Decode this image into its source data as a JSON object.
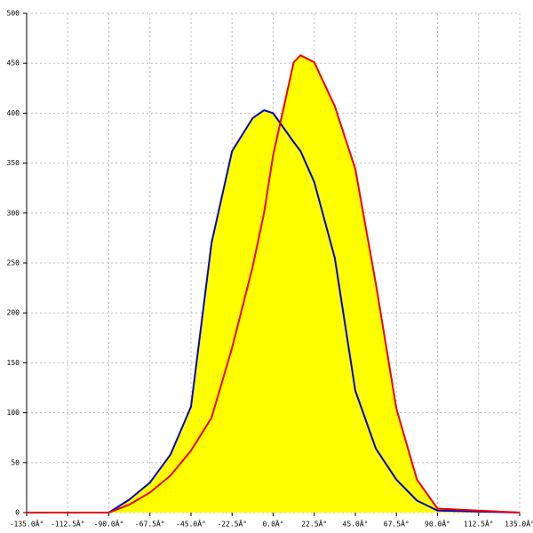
{
  "chart_data": {
    "type": "area",
    "x": [
      -135,
      -90,
      -78.75,
      -67.5,
      -56.25,
      -45,
      -33.75,
      -22.5,
      -11.25,
      -5,
      0,
      11.25,
      15,
      22.5,
      33.75,
      45,
      56.25,
      67.5,
      78.75,
      90,
      135
    ],
    "series": [
      {
        "color": "#0000cc",
        "values": [
          0,
          0,
          13,
          30,
          58,
          106,
          270,
          362,
          395,
          403,
          400,
          371,
          362,
          331,
          255,
          122,
          64,
          33,
          12,
          2,
          0
        ]
      },
      {
        "color": "#ee0000",
        "values": [
          0,
          0,
          8,
          20,
          37,
          62,
          95,
          165,
          246,
          300,
          358,
          451,
          458,
          451,
          407,
          344,
          229,
          104,
          33,
          4,
          0
        ]
      }
    ],
    "fill": "#ffff00",
    "xlim": [
      -135,
      135
    ],
    "xticks": [
      {
        "value": -135,
        "label": "-135.0Â°"
      },
      {
        "value": -112.5,
        "label": "-112.5Â°"
      },
      {
        "value": -90,
        "label": "-90.0Â°"
      },
      {
        "value": -67.5,
        "label": "-67.5Â°"
      },
      {
        "value": -45,
        "label": "-45.0Â°"
      },
      {
        "value": -22.5,
        "label": "-22.5Â°"
      },
      {
        "value": 0,
        "label": "0.0Â°"
      },
      {
        "value": 22.5,
        "label": "22.5Â°"
      },
      {
        "value": 45,
        "label": "45.0Â°"
      },
      {
        "value": 67.5,
        "label": "67.5Â°"
      },
      {
        "value": 90,
        "label": "90.0Â°"
      },
      {
        "value": 112.5,
        "label": "112.5Â°"
      },
      {
        "value": 135,
        "label": "135.0Â°"
      }
    ],
    "ylim": [
      0,
      500
    ],
    "yticks": [
      0,
      50,
      100,
      150,
      200,
      250,
      300,
      350,
      400,
      450,
      500
    ],
    "grid": true
  }
}
